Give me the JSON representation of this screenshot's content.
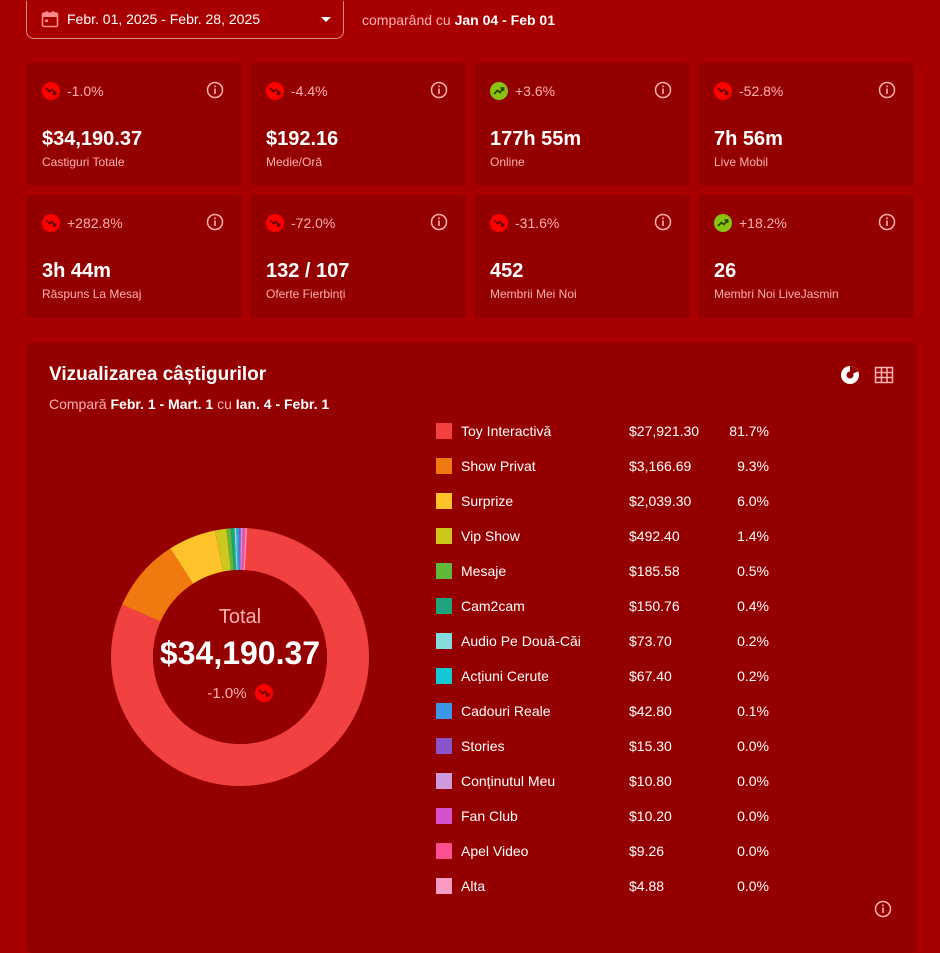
{
  "date_range": {
    "label": "Febr. 01, 2025 - Febr. 28, 2025",
    "compare_prefix": "comparând cu",
    "compare_range": "Jan 04 - Feb 01"
  },
  "cards": [
    {
      "trend": "down",
      "change": "-1.0%",
      "value": "$34,190.37",
      "label": "Castiguri Totale"
    },
    {
      "trend": "down",
      "change": "-4.4%",
      "value": "$192.16",
      "label": "Medie/Oră"
    },
    {
      "trend": "up",
      "change": "+3.6%",
      "value": "177h 55m",
      "label": "Online"
    },
    {
      "trend": "down",
      "change": "-52.8%",
      "value": "7h 56m",
      "label": "Live Mobil"
    },
    {
      "trend": "down",
      "change": "+282.8%",
      "value": "3h 44m",
      "label": "Răspuns La Mesaj"
    },
    {
      "trend": "down",
      "change": "-72.0%",
      "value": "132 / 107",
      "label": "Oferte Fierbinți"
    },
    {
      "trend": "down",
      "change": "-31.6%",
      "value": "452",
      "label": "Membrii Mei Noi"
    },
    {
      "trend": "up",
      "change": "+18.2%",
      "value": "26",
      "label": "Membri Noi LiveJasmin"
    }
  ],
  "earnings": {
    "title": "Vizualizarea câștigurilor",
    "compare_word": "Compară",
    "period": "Febr. 1 - Mart. 1",
    "with_word": "cu",
    "compare_period": "Ian. 4 - Febr. 1",
    "total_label": "Total",
    "total_value": "$34,190.37",
    "total_change": "-1.0%"
  },
  "chart_data": {
    "type": "pie",
    "categories": [
      "Toy Interactivă",
      "Show Privat",
      "Surprize",
      "Vip Show",
      "Mesaje",
      "Cam2cam",
      "Audio Pe Două-Căi",
      "Acțiuni Cerute",
      "Cadouri Reale",
      "Stories",
      "Conținutul Meu",
      "Fan Club",
      "Apel Video",
      "Alta"
    ],
    "values": [
      27921.3,
      3166.69,
      2039.3,
      492.4,
      185.58,
      150.76,
      73.7,
      67.4,
      42.8,
      15.3,
      10.8,
      10.2,
      9.26,
      4.88
    ],
    "amounts": [
      "$27,921.30",
      "$3,166.69",
      "$2,039.30",
      "$492.40",
      "$185.58",
      "$150.76",
      "$73.70",
      "$67.40",
      "$42.80",
      "$15.30",
      "$10.80",
      "$10.20",
      "$9.26",
      "$4.88"
    ],
    "percents": [
      "81.7%",
      "9.3%",
      "6.0%",
      "1.4%",
      "0.5%",
      "0.4%",
      "0.2%",
      "0.2%",
      "0.1%",
      "0.0%",
      "0.0%",
      "0.0%",
      "0.0%",
      "0.0%"
    ],
    "colors": [
      "#f24141",
      "#f07a10",
      "#fec32a",
      "#cdc81e",
      "#5fb839",
      "#1fa37a",
      "#86dcdc",
      "#13c9d6",
      "#3d96e8",
      "#8a55c8",
      "#cf9add",
      "#d453cc",
      "#fb4f92",
      "#f99cc4"
    ],
    "legend": "right"
  },
  "colors": {
    "background": "#a80000",
    "card": "#940000",
    "trend_down": "#ff0000",
    "trend_up": "#8bc314"
  },
  "icons": {
    "calendar": "calendar-icon",
    "trend_down": "trend-down-icon",
    "trend_up": "trend-up-icon",
    "info": "info-icon",
    "pie": "pie-chart-icon",
    "table": "table-icon"
  }
}
